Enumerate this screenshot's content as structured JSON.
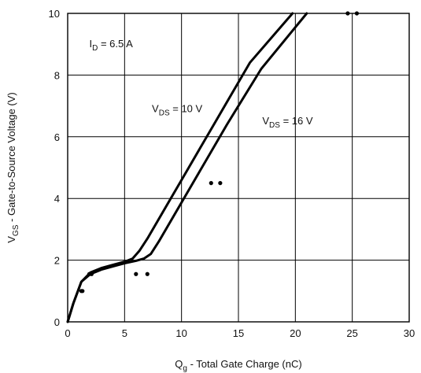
{
  "chart_data": {
    "type": "line",
    "xlabel": {
      "main": "Q",
      "sub": "g",
      "rest": " - Total Gate Charge (nC)"
    },
    "ylabel": {
      "main": "V",
      "sub": "GS",
      "rest": " - Gate-to-Source Voltage (V)"
    },
    "xlim": [
      0,
      30
    ],
    "ylim": [
      0,
      10
    ],
    "x_ticks": [
      "0",
      "5",
      "10",
      "15",
      "20",
      "25",
      "30"
    ],
    "y_ticks": [
      "0",
      "2",
      "4",
      "6",
      "8",
      "10"
    ],
    "grid": true,
    "annotations": [
      {
        "main": "I",
        "sub": "D",
        "rest": " = 6.5 A",
        "x": 1.9,
        "y": 8.9
      },
      {
        "main": "V",
        "sub": "DS",
        "rest": " = 10 V",
        "x": 7.4,
        "y": 6.8
      },
      {
        "main": "V",
        "sub": "DS",
        "rest": " = 16 V",
        "x": 17.1,
        "y": 6.4
      }
    ],
    "series": [
      {
        "label_ref": "VDS = 10 V",
        "x": [
          0,
          0.5,
          1.2,
          2.0,
          3.0,
          4.0,
          5.0,
          5.7,
          6.3,
          7.0,
          10.0,
          13.0,
          16.0,
          19.75
        ],
        "y": [
          0,
          0.6,
          1.3,
          1.6,
          1.75,
          1.85,
          1.95,
          2.05,
          2.3,
          2.7,
          4.6,
          6.5,
          8.4,
          10
        ]
      },
      {
        "label_ref": "VDS = 16 V",
        "x": [
          0,
          0.5,
          1.2,
          2.0,
          3.0,
          4.0,
          5.0,
          6.0,
          6.7,
          7.3,
          8.0,
          11.0,
          14.0,
          17.0,
          21.0
        ],
        "y": [
          0,
          0.6,
          1.3,
          1.55,
          1.7,
          1.8,
          1.9,
          1.98,
          2.05,
          2.2,
          2.6,
          4.5,
          6.4,
          8.2,
          10
        ]
      }
    ],
    "markers": [
      {
        "x": [
          1.2,
          1.3
        ],
        "y": [
          1.0,
          1.0
        ]
      },
      {
        "x": [
          1.9,
          2.1
        ],
        "y": [
          1.55,
          1.55
        ]
      },
      {
        "x": [
          6.0,
          7.0
        ],
        "y": [
          1.55,
          1.55
        ]
      },
      {
        "x": [
          12.6,
          13.4
        ],
        "y": [
          4.5,
          4.5
        ]
      },
      {
        "x": [
          24.6,
          25.4
        ],
        "y": [
          10,
          10
        ]
      }
    ]
  }
}
